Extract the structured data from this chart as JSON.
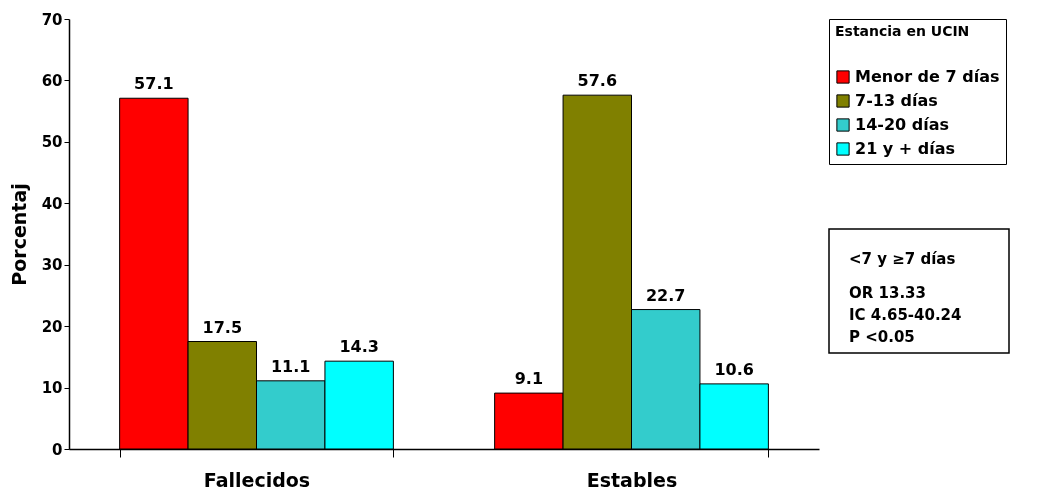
{
  "chart_data": {
    "type": "bar",
    "ylabel": "Porcentaj",
    "legend_title": "Estancia en UCIN",
    "categories": [
      "Fallecidos",
      "Estables"
    ],
    "series": [
      {
        "name": "Menor de 7 días",
        "color": "#ff0000",
        "values": [
          57.1,
          9.1
        ]
      },
      {
        "name": "7-13 días",
        "color": "#808000",
        "values": [
          17.5,
          57.6
        ]
      },
      {
        "name": "14-20 días",
        "color": "#33cccc",
        "values": [
          11.1,
          22.7
        ]
      },
      {
        "name": "21 y + días",
        "color": "#00ffff",
        "values": [
          14.3,
          10.6
        ]
      }
    ],
    "ylim": [
      0,
      70
    ],
    "yticks": [
      0,
      10,
      20,
      30,
      40,
      50,
      60,
      70
    ],
    "data_labels": true,
    "grid": false,
    "legend": "right",
    "annotations": [
      "<7 y ≥7 días",
      "OR 13.33",
      "IC 4.65-40.24",
      "P <0.05"
    ]
  }
}
